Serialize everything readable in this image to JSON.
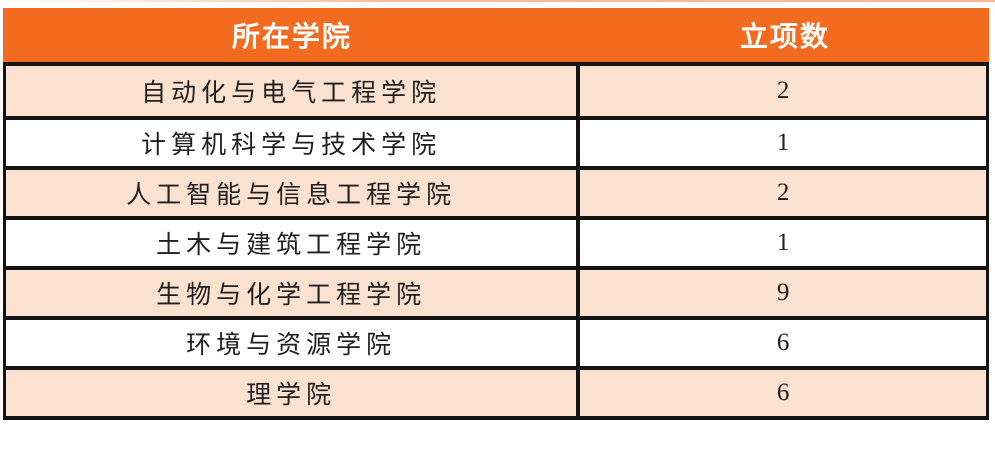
{
  "table": {
    "columns": [
      {
        "key": "college",
        "label": "所在学院"
      },
      {
        "key": "count",
        "label": "立项数"
      }
    ],
    "rows": [
      {
        "college": "自动化与电气工程学院",
        "count": "2"
      },
      {
        "college": "计算机科学与技术学院",
        "count": "1"
      },
      {
        "college": "人工智能与信息工程学院",
        "count": "2"
      },
      {
        "college": "土木与建筑工程学院",
        "count": "1"
      },
      {
        "college": "生物与化学工程学院",
        "count": "9"
      },
      {
        "college": "环境与资源学院",
        "count": "6"
      },
      {
        "college": "理学院",
        "count": "6"
      }
    ]
  },
  "colors": {
    "header_bg": "#F26B1F",
    "header_text": "#FFFFFF",
    "row_alt_bg": "#FBE2D0",
    "row_bg": "#FFFFFF",
    "border": "#141414",
    "body_text": "#1F1F1F"
  }
}
